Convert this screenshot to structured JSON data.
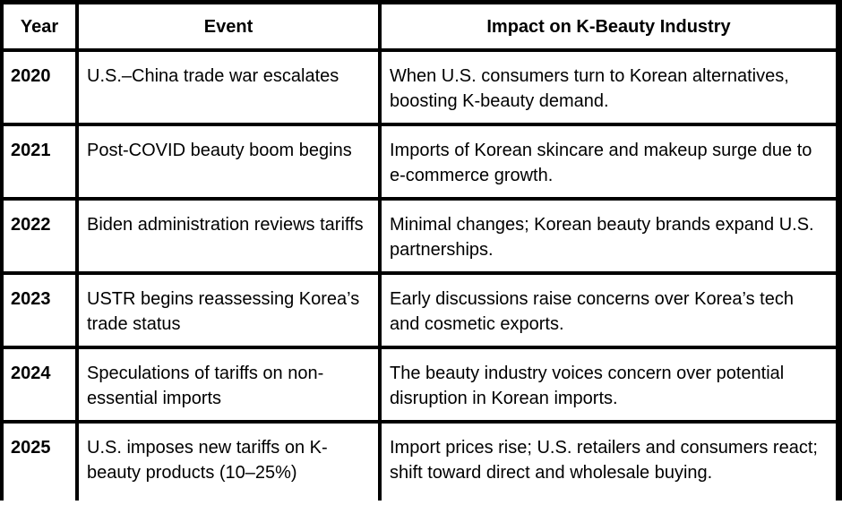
{
  "table": {
    "headers": [
      "Year",
      "Event",
      "Impact on K-Beauty Industry"
    ],
    "rows": [
      {
        "year": "2020",
        "event": "U.S.–China trade war escalates",
        "impact": "When U.S. consumers turn to Korean alternatives, boosting K-beauty demand."
      },
      {
        "year": "2021",
        "event": "Post-COVID beauty boom begins",
        "impact": "Imports of Korean skincare and makeup surge due to e-commerce growth."
      },
      {
        "year": "2022",
        "event": "Biden administration reviews tariffs",
        "impact": "Minimal changes; Korean beauty brands expand U.S. partnerships."
      },
      {
        "year": "2023",
        "event": "USTR begins reassessing Korea’s trade status",
        "impact": "Early discussions raise concerns over Korea’s tech and cosmetic exports."
      },
      {
        "year": "2024",
        "event": "Speculations of tariffs on non-essential imports",
        "impact": "The beauty industry voices concern over potential disruption in Korean imports."
      },
      {
        "year": "2025",
        "event": "U.S. imposes new tariffs on K-beauty products (10–25%)",
        "impact": "Import prices rise; U.S. retailers and consumers react; shift toward direct and wholesale buying."
      }
    ]
  }
}
